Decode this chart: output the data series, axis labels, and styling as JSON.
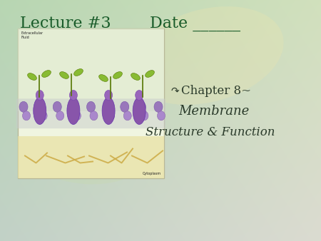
{
  "title_left": "Lecture #3",
  "title_right": "Date ______",
  "title_color": "#1a5c2a",
  "title_fontsize": 16,
  "bullet_text": "↷Chapter 8~",
  "line1": "Chapter 8~",
  "line2": "Membrane",
  "line3": "Structure & Function",
  "text_color": "#2a3a2a",
  "text_fontsize": 12,
  "italic_fontsize": 13,
  "bg_main": "#b8d4b0",
  "bg_spot1_color": "#d8e8b8",
  "bg_spot2_color": "#e8ecc8",
  "image_bg": "#f0f5e0",
  "image_border": "#b8b898"
}
